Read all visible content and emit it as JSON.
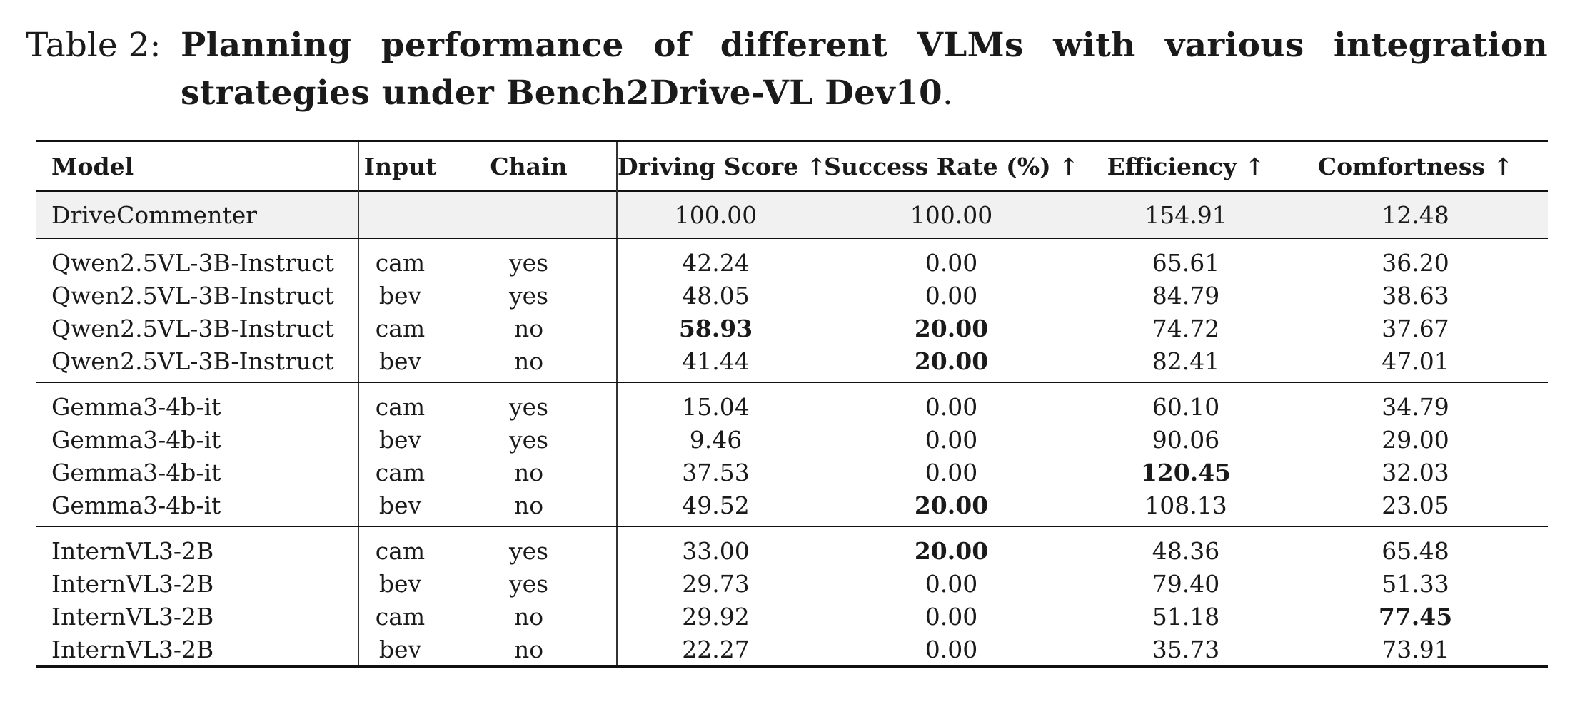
{
  "caption": {
    "label": "Table 2:",
    "text": "Planning performance of different VLMs with various integration strategies under Bench2Drive-VL Dev10",
    "period": "."
  },
  "table": {
    "headers": {
      "model": "Model",
      "input": "Input",
      "chain": "Chain",
      "driving_score": "Driving Score ↑",
      "success_rate": "Success Rate (%) ↑",
      "efficiency": "Efficiency ↑",
      "comfortness": "Comfortness ↑"
    },
    "reference": {
      "model": "DriveCommenter",
      "input": "",
      "chain": "",
      "driving_score": "100.00",
      "success_rate": "100.00",
      "efficiency": "154.91",
      "comfortness": "12.48"
    },
    "groups": [
      {
        "rows": [
          {
            "model": "Qwen2.5VL-3B-Instruct",
            "input": "cam",
            "chain": "yes",
            "driving_score": "42.24",
            "success_rate": "0.00",
            "efficiency": "65.61",
            "comfortness": "36.20"
          },
          {
            "model": "Qwen2.5VL-3B-Instruct",
            "input": "bev",
            "chain": "yes",
            "driving_score": "48.05",
            "success_rate": "0.00",
            "efficiency": "84.79",
            "comfortness": "38.63"
          },
          {
            "model": "Qwen2.5VL-3B-Instruct",
            "input": "cam",
            "chain": "no",
            "driving_score": "58.93",
            "success_rate": "20.00",
            "efficiency": "74.72",
            "comfortness": "37.67"
          },
          {
            "model": "Qwen2.5VL-3B-Instruct",
            "input": "bev",
            "chain": "no",
            "driving_score": "41.44",
            "success_rate": "20.00",
            "efficiency": "82.41",
            "comfortness": "47.01"
          }
        ]
      },
      {
        "rows": [
          {
            "model": "Gemma3-4b-it",
            "input": "cam",
            "chain": "yes",
            "driving_score": "15.04",
            "success_rate": "0.00",
            "efficiency": "60.10",
            "comfortness": "34.79"
          },
          {
            "model": "Gemma3-4b-it",
            "input": "bev",
            "chain": "yes",
            "driving_score": "9.46",
            "success_rate": "0.00",
            "efficiency": "90.06",
            "comfortness": "29.00"
          },
          {
            "model": "Gemma3-4b-it",
            "input": "cam",
            "chain": "no",
            "driving_score": "37.53",
            "success_rate": "0.00",
            "efficiency": "120.45",
            "comfortness": "32.03"
          },
          {
            "model": "Gemma3-4b-it",
            "input": "bev",
            "chain": "no",
            "driving_score": "49.52",
            "success_rate": "20.00",
            "efficiency": "108.13",
            "comfortness": "23.05"
          }
        ]
      },
      {
        "rows": [
          {
            "model": "InternVL3-2B",
            "input": "cam",
            "chain": "yes",
            "driving_score": "33.00",
            "success_rate": "20.00",
            "efficiency": "48.36",
            "comfortness": "65.48"
          },
          {
            "model": "InternVL3-2B",
            "input": "bev",
            "chain": "yes",
            "driving_score": "29.73",
            "success_rate": "0.00",
            "efficiency": "79.40",
            "comfortness": "51.33"
          },
          {
            "model": "InternVL3-2B",
            "input": "cam",
            "chain": "no",
            "driving_score": "29.92",
            "success_rate": "0.00",
            "efficiency": "51.18",
            "comfortness": "77.45"
          },
          {
            "model": "InternVL3-2B",
            "input": "bev",
            "chain": "no",
            "driving_score": "22.27",
            "success_rate": "0.00",
            "efficiency": "35.73",
            "comfortness": "73.91"
          }
        ]
      }
    ]
  }
}
